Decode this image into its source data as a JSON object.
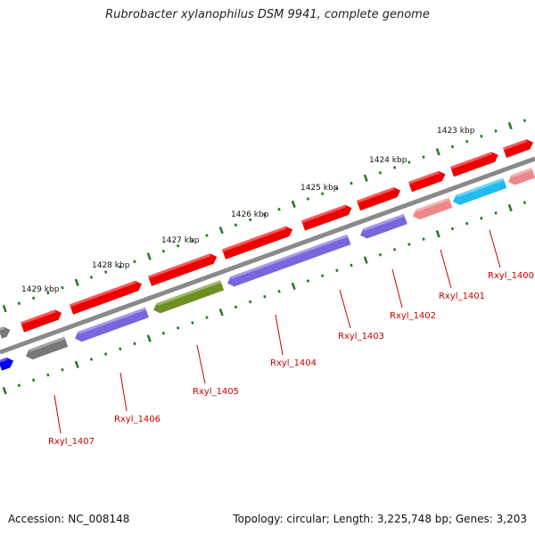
{
  "title": "Rubrobacter xylanophilus DSM 9941, complete genome",
  "footer": {
    "accession": "Accession: NC_008148",
    "stats": "Topology: circular; Length: 3,225,748 bp; Genes: 3,203"
  },
  "colors": {
    "backbone": "#8a8a8a",
    "red": "#ee0000",
    "pink": "#ee8888",
    "purple": "#7766dd",
    "olive": "#6f8f22",
    "cyan": "#22bbee",
    "gray": "#777777",
    "blue": "#0000ee",
    "tick": "#227722",
    "label": "#cc0000"
  },
  "ticks": [
    {
      "label": "1423 kbp"
    },
    {
      "label": "1424 kbp"
    },
    {
      "label": "1425 kbp"
    },
    {
      "label": "1426 kbp"
    },
    {
      "label": "1427 kbp"
    },
    {
      "label": "1428 kbp"
    },
    {
      "label": "1429 kbp"
    }
  ],
  "genes": [
    {
      "label": "Rxyl_1400",
      "color_key": "cyan"
    },
    {
      "label": "Rxyl_1401",
      "color_key": "pink"
    },
    {
      "label": "Rxyl_1402",
      "color_key": "purple"
    },
    {
      "label": "Rxyl_1403",
      "color_key": "purple"
    },
    {
      "label": "Rxyl_1404",
      "color_key": "purple"
    },
    {
      "label": "Rxyl_1405",
      "color_key": "olive"
    },
    {
      "label": "Rxyl_1406",
      "color_key": "purple"
    },
    {
      "label": "Rxyl_1407",
      "color_key": "gray"
    }
  ]
}
